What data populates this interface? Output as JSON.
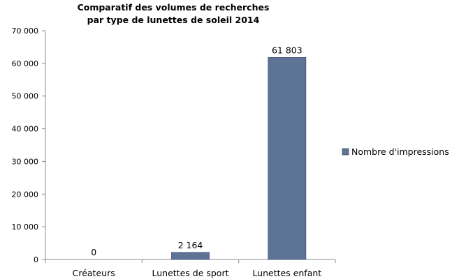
{
  "chart_data": {
    "type": "bar",
    "title": [
      "Comparatif des volumes de recherches",
      "par type de lunettes de soleil 2014"
    ],
    "xlabel": "",
    "ylabel": "",
    "categories": [
      "Créateurs",
      "Lunettes de sport",
      "Lunettes enfant"
    ],
    "series": [
      {
        "name": "Nombre d'impressions",
        "values": [
          0,
          2164,
          61803
        ],
        "value_labels": [
          "0",
          "2 164",
          "61 803"
        ]
      }
    ],
    "ylim": [
      0,
      70000
    ],
    "yticks": [
      0,
      10000,
      20000,
      30000,
      40000,
      50000,
      60000,
      70000
    ],
    "ytick_labels": [
      "0",
      "10 000",
      "20 000",
      "30 000",
      "40 000",
      "50 000",
      "60 000",
      "70 000"
    ],
    "grid": false,
    "legend": "right",
    "colors": {
      "bar": "#5e7497",
      "bar_stroke": "#3f5170",
      "axis": "#8c8c8c"
    }
  }
}
